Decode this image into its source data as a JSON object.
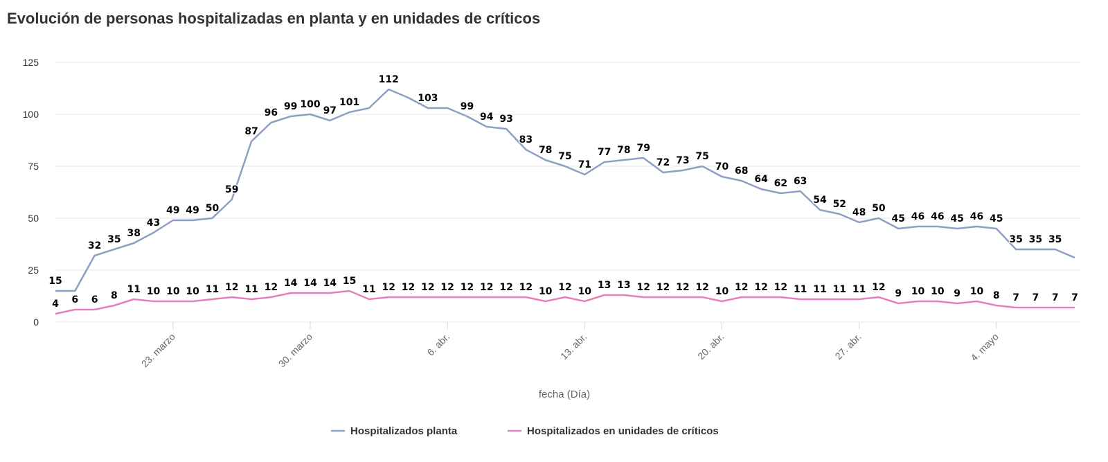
{
  "chart_data": {
    "type": "line",
    "title": "Evolución de personas hospitalizadas en planta y en unidades de críticos",
    "xlabel": "fecha (Día)",
    "ylabel": "",
    "ylim": [
      0,
      125
    ],
    "yticks": [
      0,
      25,
      50,
      75,
      100,
      125
    ],
    "x_start": "17 marzo",
    "x_end": "9 mayo",
    "xticks": [
      {
        "label": "23. marzo",
        "day_index": 6
      },
      {
        "label": "30. marzo",
        "day_index": 13
      },
      {
        "label": "6. abr.",
        "day_index": 20
      },
      {
        "label": "13. abr.",
        "day_index": 27
      },
      {
        "label": "20. abr.",
        "day_index": 34
      },
      {
        "label": "27. abr.",
        "day_index": 41
      },
      {
        "label": "4. mayo",
        "day_index": 48
      }
    ],
    "legend_position": "bottom-center",
    "series": [
      {
        "name": "Hospitalizados planta",
        "color": "#8d9fc4",
        "values": [
          15,
          15,
          32,
          35,
          38,
          43,
          49,
          49,
          50,
          59,
          87,
          96,
          99,
          100,
          97,
          101,
          103,
          112,
          108,
          103,
          103,
          99,
          94,
          93,
          83,
          78,
          75,
          71,
          77,
          78,
          79,
          72,
          73,
          75,
          70,
          68,
          64,
          62,
          63,
          54,
          52,
          48,
          50,
          45,
          46,
          46,
          45,
          46,
          45,
          35,
          35,
          35,
          31
        ],
        "labels": [
          "15",
          "",
          "32",
          "35",
          "38",
          "43",
          "49",
          "49",
          "50",
          "59",
          "87",
          "96",
          "99",
          "100",
          "97",
          "101",
          "",
          "112",
          "",
          "103",
          "",
          "99",
          "94",
          "93",
          "83",
          "78",
          "75",
          "71",
          "77",
          "78",
          "79",
          "72",
          "73",
          "75",
          "70",
          "68",
          "64",
          "62",
          "63",
          "54",
          "52",
          "48",
          "50",
          "45",
          "46",
          "46",
          "45",
          "46",
          "45",
          "35",
          "35",
          "35",
          ""
        ]
      },
      {
        "name": "Hospitalizados en unidades de críticos",
        "color": "#e381ba",
        "values": [
          4,
          6,
          6,
          8,
          11,
          10,
          10,
          10,
          11,
          12,
          11,
          12,
          14,
          14,
          14,
          15,
          11,
          12,
          12,
          12,
          12,
          12,
          12,
          12,
          12,
          10,
          12,
          10,
          13,
          13,
          12,
          12,
          12,
          12,
          10,
          12,
          12,
          12,
          11,
          11,
          11,
          11,
          12,
          9,
          10,
          10,
          9,
          10,
          8,
          7,
          7,
          7,
          7
        ],
        "labels": [
          "4",
          "6",
          "6",
          "8",
          "11",
          "10",
          "10",
          "10",
          "11",
          "12",
          "11",
          "12",
          "14",
          "14",
          "14",
          "15",
          "11",
          "12",
          "12",
          "12",
          "12",
          "12",
          "12",
          "12",
          "12",
          "10",
          "12",
          "10",
          "13",
          "13",
          "12",
          "12",
          "12",
          "12",
          "10",
          "12",
          "12",
          "12",
          "11",
          "11",
          "11",
          "11",
          "12",
          "9",
          "10",
          "10",
          "9",
          "10",
          "8",
          "7",
          "7",
          "7",
          "7"
        ]
      }
    ]
  }
}
